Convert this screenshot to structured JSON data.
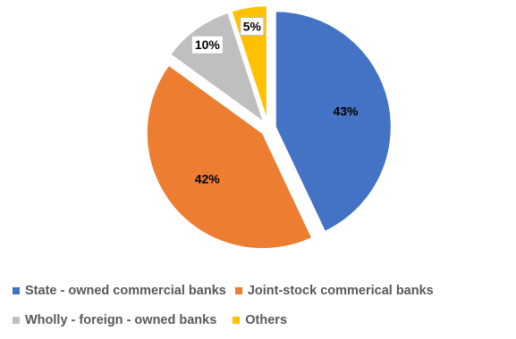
{
  "chart_data": {
    "type": "pie",
    "title": "",
    "slices": [
      {
        "name": "State - owned commercial banks",
        "value": 43,
        "label": "43%",
        "color": "#4472c4"
      },
      {
        "name": "Joint-stock commerical banks",
        "value": 42,
        "label": "42%",
        "color": "#ed7d31"
      },
      {
        "name": "Wholly - foreign - owned banks",
        "value": 10,
        "label": "10%",
        "color": "#bfbfbf"
      },
      {
        "name": "Others",
        "value": 5,
        "label": "5%",
        "color": "#ffc000"
      }
    ],
    "start_angle_deg": 0,
    "direction": "clockwise",
    "exploded": true,
    "legend_position": "bottom"
  }
}
